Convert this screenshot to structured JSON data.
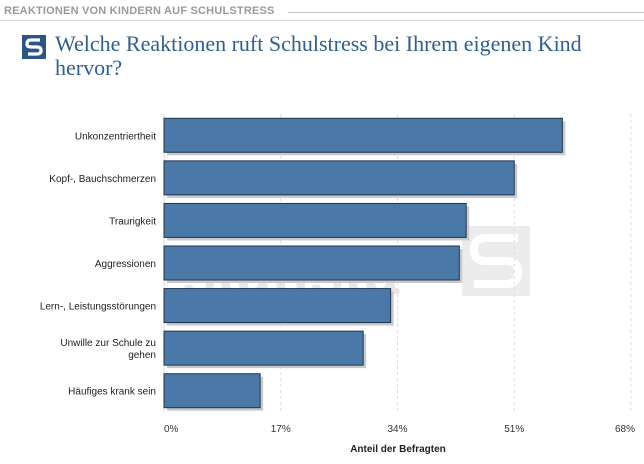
{
  "header": {
    "section_label": "REAKTIONEN VON KINDERN AUF SCHULSTRESS",
    "title": "Welche Reaktionen ruft Schulstress bei Ihrem eigenen Kind hervor?"
  },
  "watermark": {
    "text": "statista"
  },
  "colors": {
    "bar": "#4a79a8",
    "bar_border": "#1f3550",
    "title": "#2f6092",
    "grid": "#dddddd"
  },
  "logo": {
    "icon": "statista-logo-icon"
  },
  "chart_data": {
    "type": "bar",
    "orientation": "horizontal",
    "categories": [
      "Unkonzentriertheit",
      "Kopf-, Bauchschmerzen",
      "Traurigkeit",
      "Aggressionen",
      "Lern-, Leistungsstörungen",
      "Unwille zur Schule zu gehen",
      "Häufiges krank sein"
    ],
    "category_lines": [
      [
        "Unkonzentriertheit"
      ],
      [
        "Kopf-, Bauchschmerzen"
      ],
      [
        "Traurigkeit"
      ],
      [
        "Aggressionen"
      ],
      [
        "Lern-, Leistungsstörungen"
      ],
      [
        "Unwille zur Schule zu",
        "gehen"
      ],
      [
        "Häufiges krank sein"
      ]
    ],
    "values": [
      58,
      51,
      44,
      43,
      33,
      29,
      14
    ],
    "xlim": [
      0,
      68
    ],
    "xticks": [
      0,
      17,
      34,
      51,
      68
    ],
    "xtick_labels": [
      "0%",
      "17%",
      "34%",
      "51%",
      "68%"
    ],
    "xlabel": "Anteil der Befragten",
    "grid": true
  }
}
